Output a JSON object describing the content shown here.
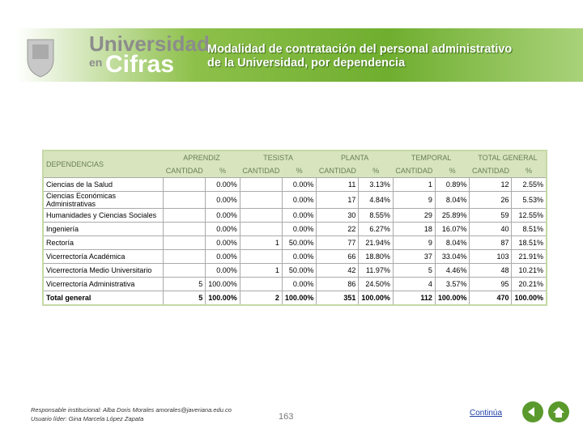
{
  "header": {
    "brand_line1": "Universidad",
    "brand_line2_small": "en",
    "brand_line2": "Cifras",
    "title_line1": "Modalidad de contratación del personal administrativo",
    "title_line2": "de la Universidad, por dependencia"
  },
  "table": {
    "column_header": "DEPENDENCIAS",
    "groups": [
      "APRENDIZ",
      "TESISTA",
      "PLANTA",
      "TEMPORAL",
      "TOTAL GENERAL"
    ],
    "subheaders": [
      "CANTIDAD",
      "%"
    ],
    "rows": [
      [
        "Ciencias de la Salud",
        null,
        "0.00%",
        null,
        "0.00%",
        "11",
        "3.13%",
        "1",
        "0.89%",
        "12",
        "2.55%"
      ],
      [
        "Ciencias Económicas Administrativas",
        null,
        "0.00%",
        null,
        "0.00%",
        "17",
        "4.84%",
        "9",
        "8.04%",
        "26",
        "5.53%"
      ],
      [
        "Humanidades y Ciencias Sociales",
        null,
        "0.00%",
        null,
        "0.00%",
        "30",
        "8.55%",
        "29",
        "25.89%",
        "59",
        "12.55%"
      ],
      [
        "Ingeniería",
        null,
        "0.00%",
        null,
        "0.00%",
        "22",
        "6.27%",
        "18",
        "16.07%",
        "40",
        "8.51%"
      ],
      [
        "Rectoría",
        null,
        "0.00%",
        "1",
        "50.00%",
        "77",
        "21.94%",
        "9",
        "8.04%",
        "87",
        "18.51%"
      ],
      [
        "Vicerrectoría Académica",
        null,
        "0.00%",
        null,
        "0.00%",
        "66",
        "18.80%",
        "37",
        "33.04%",
        "103",
        "21.91%"
      ],
      [
        "Vicerrectoría Medio Universitario",
        null,
        "0.00%",
        "1",
        "50.00%",
        "42",
        "11.97%",
        "5",
        "4.46%",
        "48",
        "10.21%"
      ],
      [
        "Vicerrectoría Administrativa",
        "5",
        "100.00%",
        null,
        "0.00%",
        "86",
        "24.50%",
        "4",
        "3.57%",
        "95",
        "20.21%"
      ]
    ],
    "total": [
      "Total general",
      "5",
      "100.00%",
      "2",
      "100.00%",
      "351",
      "100.00%",
      "112",
      "100.00%",
      "470",
      "100.00%"
    ]
  },
  "footer": {
    "responsible": "Responsable institucional: Alba Doris Morales amorales@javeriana.edu.co",
    "leader": "Usuario líder: Gina Marcela López Zapata",
    "page": "163",
    "next": "Continúa"
  }
}
